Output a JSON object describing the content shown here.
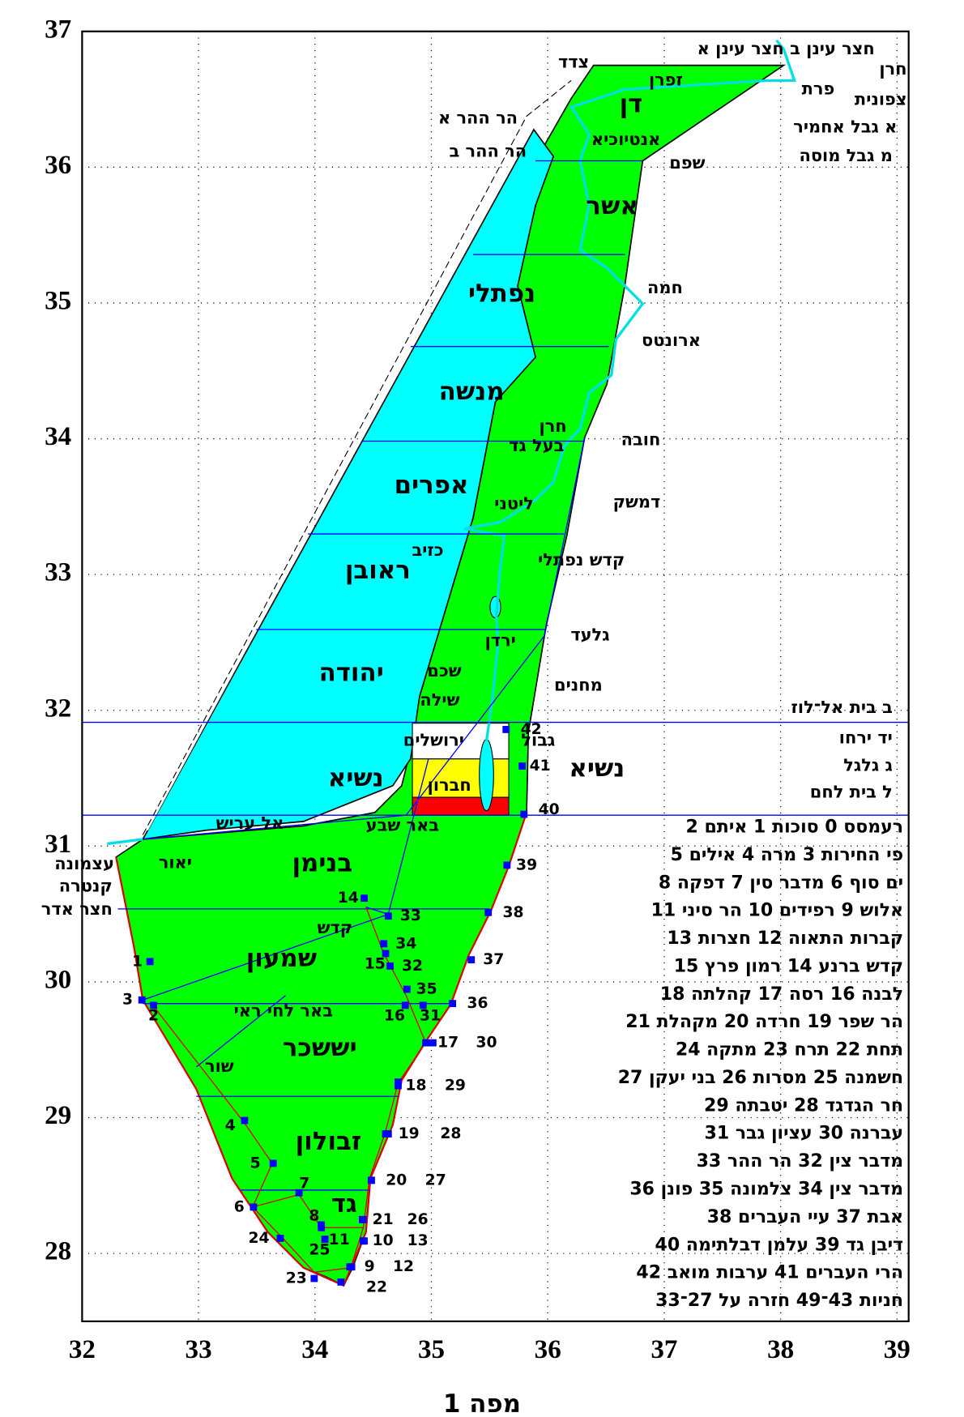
{
  "map": {
    "title": "מפה 1",
    "xlim": [
      32,
      39.1
    ],
    "ylim": [
      27.5,
      37
    ],
    "xticks": [
      32,
      33,
      34,
      35,
      36,
      37,
      38,
      39
    ],
    "yticks": [
      28,
      29,
      30,
      31,
      32,
      33,
      34,
      35,
      36,
      37
    ],
    "grid": true,
    "tribes": [
      "דן",
      "אשר",
      "נפתלי",
      "מנשה",
      "אפרים",
      "ראובן",
      "יהודה",
      "נשיא",
      "נשיא",
      "בנימן",
      "שמעון",
      "יששכר",
      "זבולון",
      "גד"
    ],
    "places": [
      "חצר עינן ב  חצר עינן א",
      "חרן",
      "פרת",
      "צפונית",
      "א גבל אחמיר",
      "מ גבל מוסה",
      "צדד",
      "זפרן",
      "הר ההר א",
      "אנטיוכיא",
      "הר ההר ב",
      "שפם",
      "חמה",
      "ארונטס",
      "חרן",
      "חובה",
      "בעל גד",
      "ליטני",
      "דמשק",
      "כזיב",
      "קדש נפתלי",
      "גלעד",
      "ירדן",
      "שכם",
      "מחנים",
      "שילה",
      "ירושלים",
      "גבול",
      "חברון",
      "אל עריש",
      "באר שבע",
      "עצמונה",
      "קנטרה",
      "חצר אדר",
      "יאור",
      "קדש",
      "באר לחי ראי",
      "שור",
      "ב בית אל־לוז",
      "יד ירחו",
      "ג גלגל",
      "ל בית לחם"
    ],
    "stations": [
      14,
      33,
      34,
      15,
      32,
      37,
      1,
      3,
      35,
      36,
      2,
      16,
      31,
      17,
      30,
      18,
      29,
      4,
      19,
      28,
      5,
      20,
      27,
      7,
      6,
      8,
      21,
      26,
      24,
      11,
      10,
      13,
      25,
      23,
      9,
      12,
      22,
      39,
      38,
      42,
      40,
      41
    ],
    "legend": [
      "רעמסס 0 סוכות 1 איתם 2",
      "פי החירות 3 מרה 4 אילים 5",
      "ים סוף 6 מדבר סין 7 דפקה 8",
      "אלוש 9 רפידים 10 הר סיני 11",
      "קברות התאוה 12 חצרות 13",
      "קדש ברנע 14 רמון פרץ 15",
      "לבנה 16 רסה 17 קהלתה 18",
      "הר שפר 19 חרדה 20 מקהלת 21",
      "תחת 22 תרח 23 מתקה 24",
      "חשמנה 25 מסרות 26 בני יעקן 27",
      "חר הגדגד 28 יטבתה 29",
      "עברנה 30 עציון גבר 31",
      "מדבר צין 32 הר ההר 33",
      "מדבר צין 34 צלמונה 35 פונן 36",
      "אבת 37 עיי העברים 38",
      "דיבן גד 39 עלמן דבלתימה 40",
      "הרי העברים 41 ערבות מואב 42",
      "חניות 43־49 חזרה על 27־33"
    ]
  }
}
